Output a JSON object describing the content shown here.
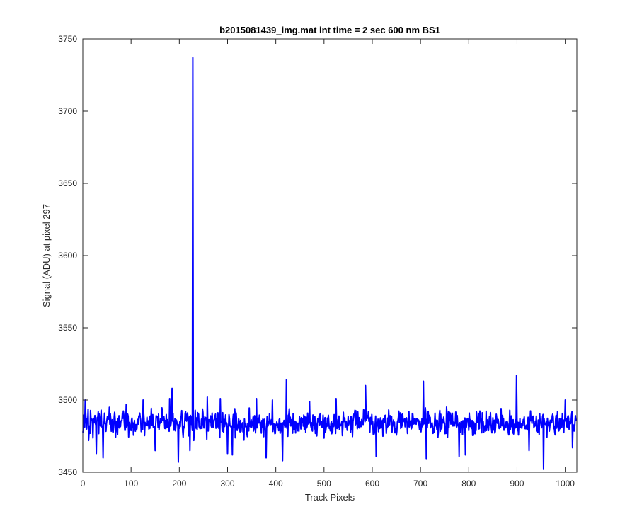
{
  "chart_data": {
    "type": "line",
    "title": "b2015081439_img.mat int time = 2 sec  600 nm BS1",
    "xlabel": "Track Pixels",
    "ylabel": "Signal (ADU) at pixel 297",
    "xlim": [
      0,
      1024
    ],
    "ylim": [
      3450,
      3750
    ],
    "xticks": [
      0,
      100,
      200,
      300,
      400,
      500,
      600,
      700,
      800,
      900,
      1000
    ],
    "yticks": [
      3450,
      3500,
      3550,
      3600,
      3650,
      3700,
      3750
    ],
    "grid": false,
    "legend": "none",
    "series": [
      {
        "color": "#0000ff",
        "line_width": 2,
        "baseline": 3484,
        "noise_amplitude": 11,
        "n_points": 1024,
        "notable_points": [
          {
            "x": 5,
            "y": 3500
          },
          {
            "x": 12,
            "y": 3472
          },
          {
            "x": 28,
            "y": 3463
          },
          {
            "x": 42,
            "y": 3460
          },
          {
            "x": 55,
            "y": 3495
          },
          {
            "x": 90,
            "y": 3497
          },
          {
            "x": 125,
            "y": 3500
          },
          {
            "x": 150,
            "y": 3465
          },
          {
            "x": 180,
            "y": 3501
          },
          {
            "x": 185,
            "y": 3508
          },
          {
            "x": 198,
            "y": 3457
          },
          {
            "x": 222,
            "y": 3465
          },
          {
            "x": 228,
            "y": 3737
          },
          {
            "x": 230,
            "y": 3472
          },
          {
            "x": 258,
            "y": 3502
          },
          {
            "x": 285,
            "y": 3501
          },
          {
            "x": 300,
            "y": 3463
          },
          {
            "x": 310,
            "y": 3462
          },
          {
            "x": 360,
            "y": 3501
          },
          {
            "x": 380,
            "y": 3460
          },
          {
            "x": 393,
            "y": 3500
          },
          {
            "x": 414,
            "y": 3458
          },
          {
            "x": 422,
            "y": 3514
          },
          {
            "x": 470,
            "y": 3499
          },
          {
            "x": 525,
            "y": 3501
          },
          {
            "x": 586,
            "y": 3510
          },
          {
            "x": 608,
            "y": 3461
          },
          {
            "x": 706,
            "y": 3513
          },
          {
            "x": 712,
            "y": 3459
          },
          {
            "x": 780,
            "y": 3461
          },
          {
            "x": 793,
            "y": 3462
          },
          {
            "x": 899,
            "y": 3517
          },
          {
            "x": 925,
            "y": 3465
          },
          {
            "x": 955,
            "y": 3452
          },
          {
            "x": 1000,
            "y": 3500
          },
          {
            "x": 1015,
            "y": 3467
          }
        ]
      }
    ]
  }
}
